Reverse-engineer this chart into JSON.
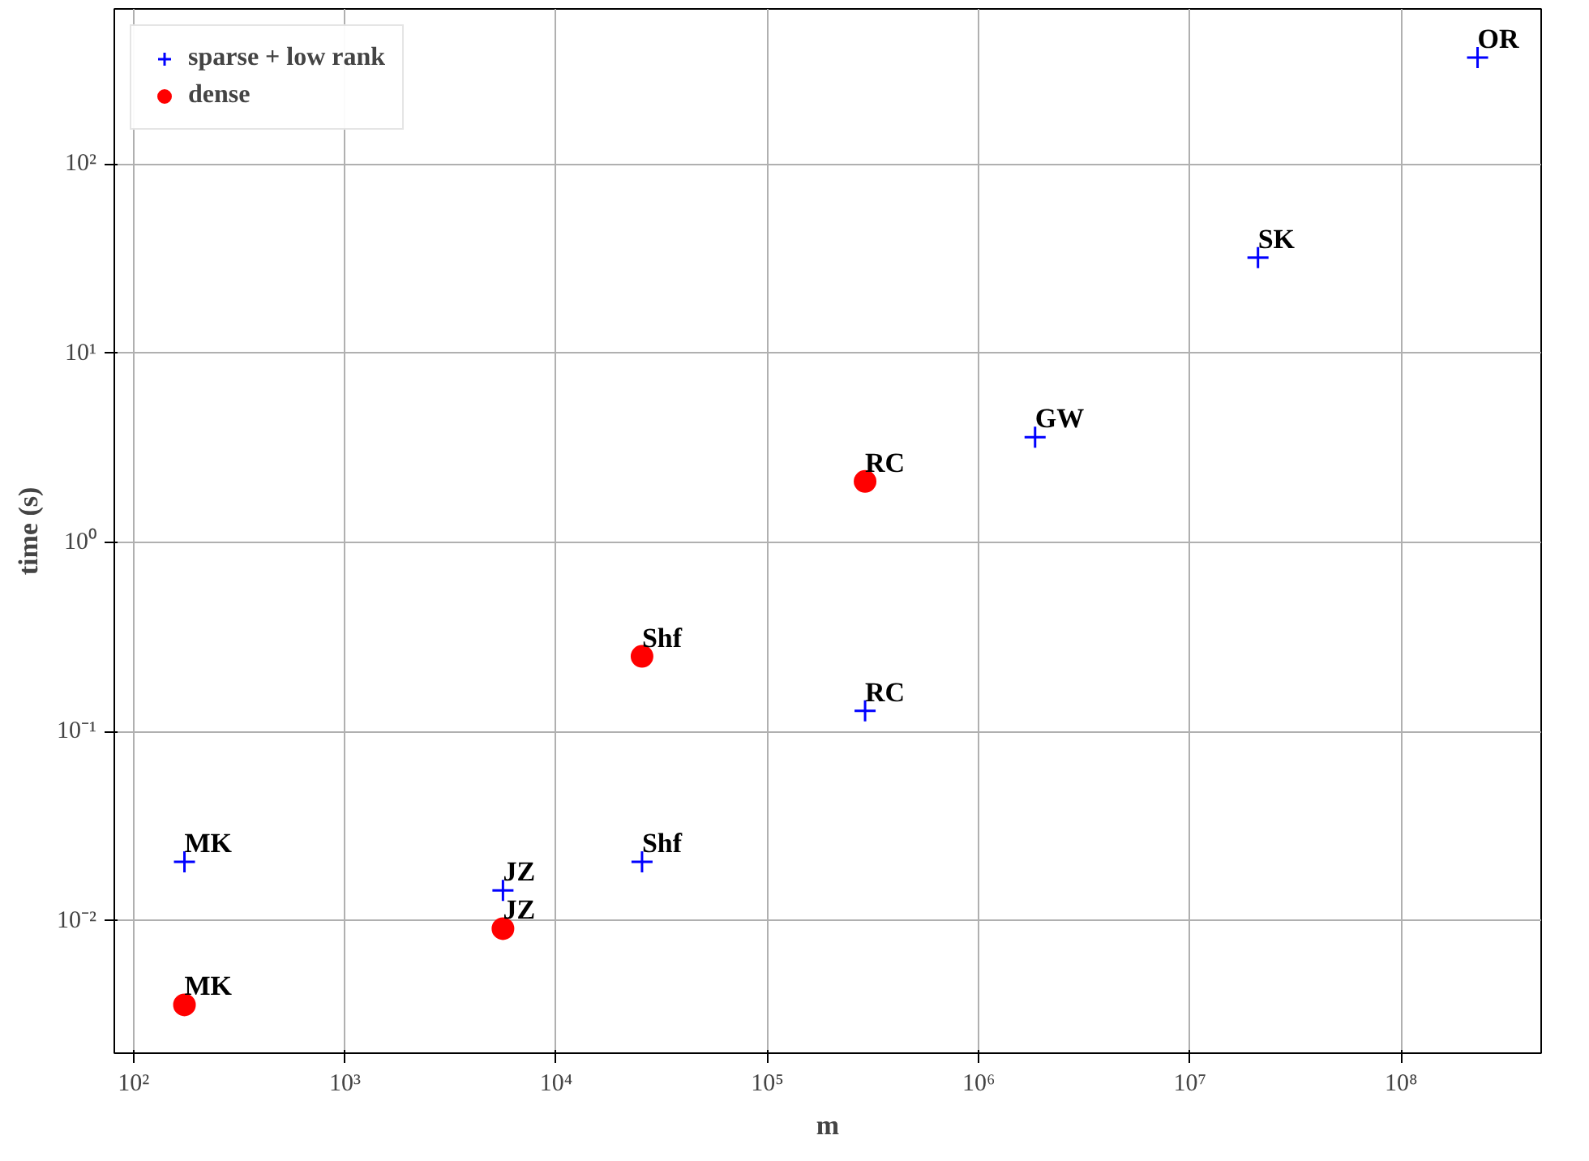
{
  "chart_data": {
    "type": "scatter",
    "xlabel": "m",
    "ylabel": "time (s)",
    "log": "xy",
    "grid": true,
    "legend": "top left",
    "xlim": [
      81,
      460000000
    ],
    "ylim": [
      0.002,
      660
    ],
    "xticks": [
      {
        "value": 100,
        "label": "10²"
      },
      {
        "value": 1000,
        "label": "10³"
      },
      {
        "value": 10000,
        "label": "10⁴"
      },
      {
        "value": 100000,
        "label": "10⁵"
      },
      {
        "value": 1000000,
        "label": "10⁶"
      },
      {
        "value": 10000000,
        "label": "10⁷"
      },
      {
        "value": 100000000,
        "label": "10⁸"
      }
    ],
    "yticks": [
      {
        "value": 0.01,
        "label": "10⁻²"
      },
      {
        "value": 0.1,
        "label": "10⁻¹"
      },
      {
        "value": 1,
        "label": "10⁰"
      },
      {
        "value": 10,
        "label": "10¹"
      },
      {
        "value": 100,
        "label": "10²"
      }
    ],
    "series": [
      {
        "name": "sparse + low rank",
        "color": "#0000ff",
        "marker": "cross",
        "x": [
          174,
          5600,
          25500,
          290000,
          1850000,
          21000000,
          230000000
        ],
        "values": [
          0.0205,
          0.0145,
          0.0205,
          0.129,
          3.6,
          32,
          365
        ]
      },
      {
        "name": "dense",
        "color": "#ff0000",
        "marker": "circle",
        "x": [
          174,
          5600,
          25500,
          290000
        ],
        "values": [
          0.0036,
          0.0091,
          0.25,
          2.1
        ]
      }
    ],
    "annotations": [
      {
        "text": "MK",
        "x": 174,
        "y": 0.0205
      },
      {
        "text": "JZ",
        "x": 5600,
        "y": 0.0145
      },
      {
        "text": "Shf",
        "x": 25500,
        "y": 0.0205
      },
      {
        "text": "RC",
        "x": 290000,
        "y": 0.129
      },
      {
        "text": "GW",
        "x": 1850000,
        "y": 3.6
      },
      {
        "text": "SK",
        "x": 21000000,
        "y": 32
      },
      {
        "text": "OR",
        "x": 230000000,
        "y": 365
      },
      {
        "text": "MK",
        "x": 174,
        "y": 0.0036
      },
      {
        "text": "JZ",
        "x": 5600,
        "y": 0.0091
      },
      {
        "text": "Shf",
        "x": 25500,
        "y": 0.25
      },
      {
        "text": "RC",
        "x": 290000,
        "y": 2.1
      }
    ]
  }
}
